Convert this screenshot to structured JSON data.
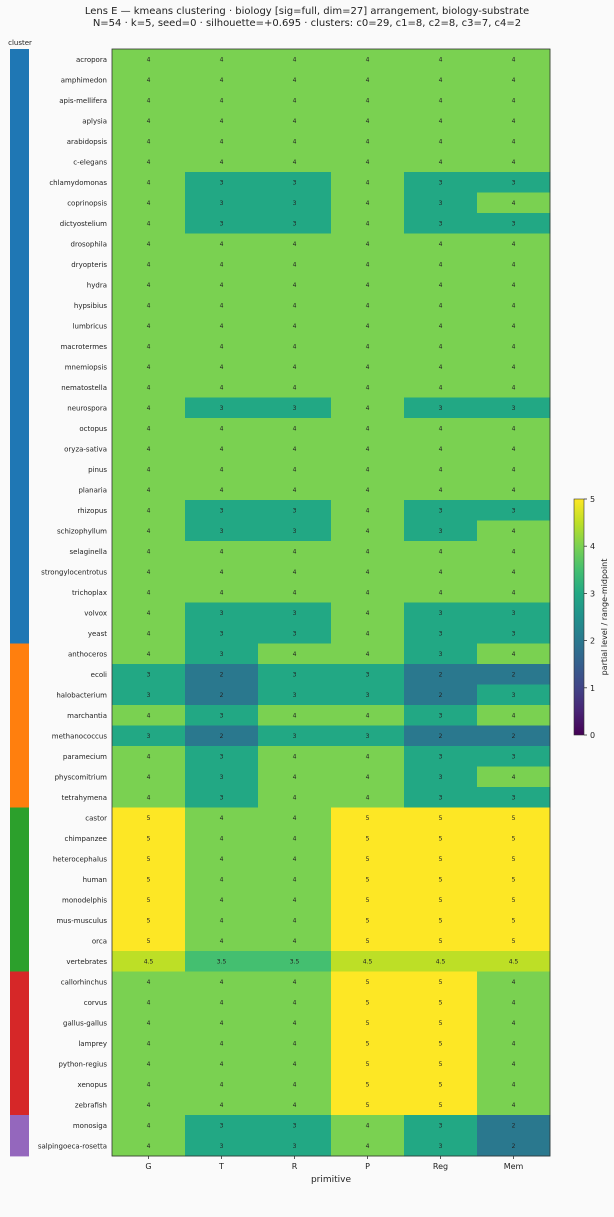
{
  "title_line1": "Lens E — kmeans clustering · biology [sig=full, dim=27] arrangement, biology-substrate",
  "title_line2": "N=54 · k=5, seed=0 · silhouette=+0.695 · clusters: c0=29, c1=8, c2=8, c3=7, c4=2",
  "cluster_strip_label": "cluster",
  "chart_data": {
    "type": "heatmap",
    "xlabel": "primitive",
    "colorbar_label": "partial level / range-midpoint",
    "color_range": [
      0,
      5
    ],
    "colorbar_ticks": [
      "0",
      "1",
      "2",
      "3",
      "4",
      "5"
    ],
    "colormap": "viridis",
    "columns": [
      "G",
      "T",
      "R",
      "P",
      "Reg",
      "Mem"
    ],
    "cluster_colors": [
      "#1f77b4",
      "#ff7f0e",
      "#2ca02c",
      "#d62728",
      "#9467bd"
    ],
    "rows": [
      {
        "label": "acropora",
        "cluster": 0,
        "values": [
          4,
          4,
          4,
          4,
          4,
          4
        ]
      },
      {
        "label": "amphimedon",
        "cluster": 0,
        "values": [
          4,
          4,
          4,
          4,
          4,
          4
        ]
      },
      {
        "label": "apis-mellifera",
        "cluster": 0,
        "values": [
          4,
          4,
          4,
          4,
          4,
          4
        ]
      },
      {
        "label": "aplysia",
        "cluster": 0,
        "values": [
          4,
          4,
          4,
          4,
          4,
          4
        ]
      },
      {
        "label": "arabidopsis",
        "cluster": 0,
        "values": [
          4,
          4,
          4,
          4,
          4,
          4
        ]
      },
      {
        "label": "c-elegans",
        "cluster": 0,
        "values": [
          4,
          4,
          4,
          4,
          4,
          4
        ]
      },
      {
        "label": "chlamydomonas",
        "cluster": 0,
        "values": [
          4,
          3,
          3,
          4,
          3,
          3
        ]
      },
      {
        "label": "coprinopsis",
        "cluster": 0,
        "values": [
          4,
          3,
          3,
          4,
          3,
          4
        ]
      },
      {
        "label": "dictyostelium",
        "cluster": 0,
        "values": [
          4,
          3,
          3,
          4,
          3,
          3
        ]
      },
      {
        "label": "drosophila",
        "cluster": 0,
        "values": [
          4,
          4,
          4,
          4,
          4,
          4
        ]
      },
      {
        "label": "dryopteris",
        "cluster": 0,
        "values": [
          4,
          4,
          4,
          4,
          4,
          4
        ]
      },
      {
        "label": "hydra",
        "cluster": 0,
        "values": [
          4,
          4,
          4,
          4,
          4,
          4
        ]
      },
      {
        "label": "hypsibius",
        "cluster": 0,
        "values": [
          4,
          4,
          4,
          4,
          4,
          4
        ]
      },
      {
        "label": "lumbricus",
        "cluster": 0,
        "values": [
          4,
          4,
          4,
          4,
          4,
          4
        ]
      },
      {
        "label": "macrotermes",
        "cluster": 0,
        "values": [
          4,
          4,
          4,
          4,
          4,
          4
        ]
      },
      {
        "label": "mnemiopsis",
        "cluster": 0,
        "values": [
          4,
          4,
          4,
          4,
          4,
          4
        ]
      },
      {
        "label": "nematostella",
        "cluster": 0,
        "values": [
          4,
          4,
          4,
          4,
          4,
          4
        ]
      },
      {
        "label": "neurospora",
        "cluster": 0,
        "values": [
          4,
          3,
          3,
          4,
          3,
          3
        ]
      },
      {
        "label": "octopus",
        "cluster": 0,
        "values": [
          4,
          4,
          4,
          4,
          4,
          4
        ]
      },
      {
        "label": "oryza-sativa",
        "cluster": 0,
        "values": [
          4,
          4,
          4,
          4,
          4,
          4
        ]
      },
      {
        "label": "pinus",
        "cluster": 0,
        "values": [
          4,
          4,
          4,
          4,
          4,
          4
        ]
      },
      {
        "label": "planaria",
        "cluster": 0,
        "values": [
          4,
          4,
          4,
          4,
          4,
          4
        ]
      },
      {
        "label": "rhizopus",
        "cluster": 0,
        "values": [
          4,
          3,
          3,
          4,
          3,
          3
        ]
      },
      {
        "label": "schizophyllum",
        "cluster": 0,
        "values": [
          4,
          3,
          3,
          4,
          3,
          4
        ]
      },
      {
        "label": "selaginella",
        "cluster": 0,
        "values": [
          4,
          4,
          4,
          4,
          4,
          4
        ]
      },
      {
        "label": "strongylocentrotus",
        "cluster": 0,
        "values": [
          4,
          4,
          4,
          4,
          4,
          4
        ]
      },
      {
        "label": "trichoplax",
        "cluster": 0,
        "values": [
          4,
          4,
          4,
          4,
          4,
          4
        ]
      },
      {
        "label": "volvox",
        "cluster": 0,
        "values": [
          4,
          3,
          3,
          4,
          3,
          3
        ]
      },
      {
        "label": "yeast",
        "cluster": 0,
        "values": [
          4,
          3,
          3,
          4,
          3,
          3
        ]
      },
      {
        "label": "anthoceros",
        "cluster": 1,
        "values": [
          4,
          3,
          4,
          4,
          3,
          4
        ]
      },
      {
        "label": "ecoli",
        "cluster": 1,
        "values": [
          3,
          2,
          3,
          3,
          2,
          2
        ]
      },
      {
        "label": "halobacterium",
        "cluster": 1,
        "values": [
          3,
          2,
          3,
          3,
          2,
          3
        ]
      },
      {
        "label": "marchantia",
        "cluster": 1,
        "values": [
          4,
          3,
          4,
          4,
          3,
          4
        ]
      },
      {
        "label": "methanococcus",
        "cluster": 1,
        "values": [
          3,
          2,
          3,
          3,
          2,
          2
        ]
      },
      {
        "label": "paramecium",
        "cluster": 1,
        "values": [
          4,
          3,
          4,
          4,
          3,
          3
        ]
      },
      {
        "label": "physcomitrium",
        "cluster": 1,
        "values": [
          4,
          3,
          4,
          4,
          3,
          4
        ]
      },
      {
        "label": "tetrahymena",
        "cluster": 1,
        "values": [
          4,
          3,
          4,
          4,
          3,
          3
        ]
      },
      {
        "label": "castor",
        "cluster": 2,
        "values": [
          5,
          4,
          4,
          5,
          5,
          5
        ]
      },
      {
        "label": "chimpanzee",
        "cluster": 2,
        "values": [
          5,
          4,
          4,
          5,
          5,
          5
        ]
      },
      {
        "label": "heterocephalus",
        "cluster": 2,
        "values": [
          5,
          4,
          4,
          5,
          5,
          5
        ]
      },
      {
        "label": "human",
        "cluster": 2,
        "values": [
          5,
          4,
          4,
          5,
          5,
          5
        ]
      },
      {
        "label": "monodelphis",
        "cluster": 2,
        "values": [
          5,
          4,
          4,
          5,
          5,
          5
        ]
      },
      {
        "label": "mus-musculus",
        "cluster": 2,
        "values": [
          5,
          4,
          4,
          5,
          5,
          5
        ]
      },
      {
        "label": "orca",
        "cluster": 2,
        "values": [
          5,
          4,
          4,
          5,
          5,
          5
        ]
      },
      {
        "label": "vertebrates",
        "cluster": 2,
        "values": [
          4.5,
          3.5,
          3.5,
          4.5,
          4.5,
          4.5
        ]
      },
      {
        "label": "callorhinchus",
        "cluster": 3,
        "values": [
          4,
          4,
          4,
          5,
          5,
          4
        ]
      },
      {
        "label": "corvus",
        "cluster": 3,
        "values": [
          4,
          4,
          4,
          5,
          5,
          4
        ]
      },
      {
        "label": "gallus-gallus",
        "cluster": 3,
        "values": [
          4,
          4,
          4,
          5,
          5,
          4
        ]
      },
      {
        "label": "lamprey",
        "cluster": 3,
        "values": [
          4,
          4,
          4,
          5,
          5,
          4
        ]
      },
      {
        "label": "python-regius",
        "cluster": 3,
        "values": [
          4,
          4,
          4,
          5,
          5,
          4
        ]
      },
      {
        "label": "xenopus",
        "cluster": 3,
        "values": [
          4,
          4,
          4,
          5,
          5,
          4
        ]
      },
      {
        "label": "zebrafish",
        "cluster": 3,
        "values": [
          4,
          4,
          4,
          5,
          5,
          4
        ]
      },
      {
        "label": "monosiga",
        "cluster": 4,
        "values": [
          4,
          3,
          3,
          4,
          3,
          2
        ]
      },
      {
        "label": "salpingoeca-rosetta",
        "cluster": 4,
        "values": [
          4,
          3,
          3,
          4,
          3,
          2
        ]
      }
    ]
  }
}
